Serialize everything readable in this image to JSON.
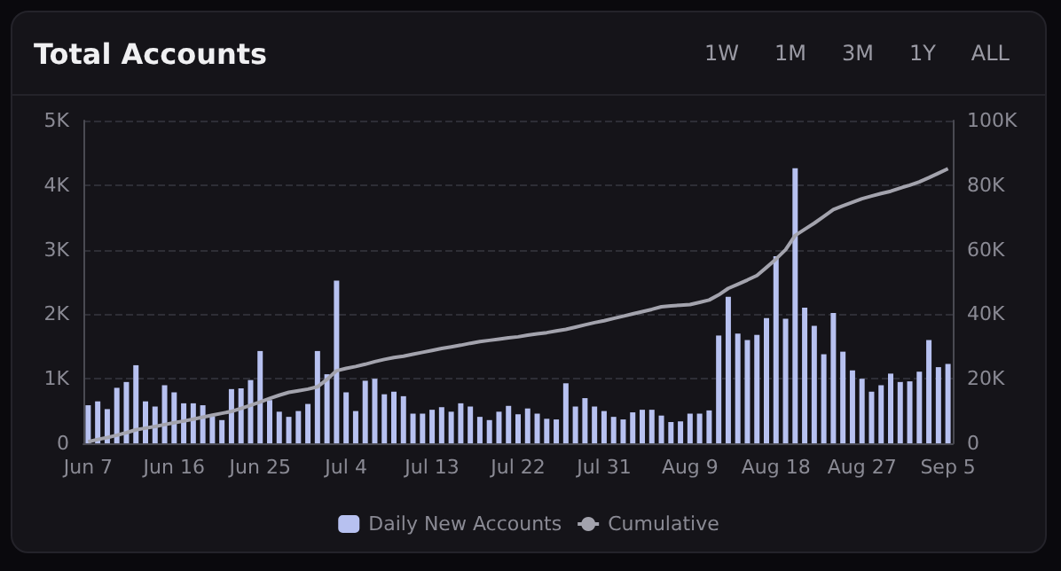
{
  "chart_data": {
    "type": "bar",
    "title": "Total Accounts",
    "annotations": [
      "1W",
      "1M",
      "3M",
      "1Y",
      "ALL"
    ],
    "categories": [
      "Jun 7",
      null,
      null,
      null,
      null,
      null,
      null,
      null,
      null,
      "Jun 16",
      null,
      null,
      null,
      null,
      null,
      null,
      null,
      null,
      "Jun 25",
      null,
      null,
      null,
      null,
      null,
      null,
      null,
      null,
      "Jul 4",
      null,
      null,
      null,
      null,
      null,
      null,
      null,
      null,
      "Jul 13",
      null,
      null,
      null,
      null,
      null,
      null,
      null,
      null,
      "Jul 22",
      null,
      null,
      null,
      null,
      null,
      null,
      null,
      null,
      "Jul 31",
      null,
      null,
      null,
      null,
      null,
      null,
      null,
      null,
      "Aug 9",
      null,
      null,
      null,
      null,
      null,
      null,
      null,
      null,
      "Aug 18",
      null,
      null,
      null,
      null,
      null,
      null,
      null,
      null,
      "Aug 27",
      null,
      null,
      null,
      null,
      null,
      null,
      null,
      null,
      "Sep 5"
    ],
    "series": [
      {
        "name": "Daily New Accounts",
        "color": "#b7c1f0",
        "values": [
          590,
          650,
          530,
          860,
          950,
          1210,
          650,
          570,
          900,
          790,
          620,
          620,
          590,
          420,
          360,
          840,
          850,
          980,
          1430,
          670,
          490,
          410,
          500,
          610,
          1430,
          1070,
          2520,
          790,
          500,
          970,
          1000,
          760,
          800,
          730,
          460,
          460,
          520,
          560,
          490,
          620,
          570,
          410,
          360,
          490,
          580,
          450,
          540,
          460,
          380,
          370,
          930,
          570,
          700,
          570,
          500,
          410,
          370,
          480,
          520,
          520,
          430,
          330,
          340,
          460,
          460,
          510,
          1670,
          2270,
          1700,
          1600,
          1680,
          1940,
          2900,
          1930,
          4260,
          2100,
          1820,
          1380,
          2020,
          1420,
          1130,
          1000,
          800,
          900,
          1080,
          950,
          960,
          1110,
          1600,
          1180,
          1230
        ]
      },
      {
        "name": "Cumulative",
        "type": "line",
        "axis": "y2",
        "color": "#a3a3ad",
        "values": [
          500,
          1200,
          1800,
          2500,
          3300,
          4200,
          4700,
          5200,
          5800,
          6400,
          6900,
          7500,
          8100,
          8700,
          9300,
          9900,
          10800,
          11800,
          12800,
          13900,
          14900,
          15800,
          16300,
          16800,
          17500,
          19800,
          22500,
          23200,
          23800,
          24500,
          25300,
          26000,
          26600,
          27000,
          27600,
          28200,
          28800,
          29400,
          29900,
          30400,
          31000,
          31500,
          31900,
          32300,
          32700,
          33000,
          33500,
          33900,
          34300,
          34800,
          35300,
          36000,
          36700,
          37400,
          38000,
          38700,
          39400,
          40100,
          40800,
          41500,
          42300,
          42600,
          42800,
          43000,
          43700,
          44400,
          46000,
          48000,
          49300,
          50600,
          52000,
          54500,
          57100,
          60000,
          64400,
          66300,
          68200,
          70300,
          72400,
          73600,
          74700,
          75800,
          76600,
          77400,
          78100,
          79100,
          80000,
          81000,
          82300,
          83700,
          85100
        ]
      }
    ],
    "ylim": [
      0,
      5000
    ],
    "yticks": [
      0,
      {
        "value": 1000,
        "label": "1K"
      },
      {
        "value": 2000,
        "label": "2K"
      },
      {
        "value": 3000,
        "label": "3K"
      },
      {
        "value": 4000,
        "label": "4K"
      },
      {
        "value": 5000,
        "label": "5K"
      }
    ],
    "y2lim": [
      0,
      100000
    ],
    "y2ticks": [
      0,
      {
        "value": 20000,
        "label": "20K"
      },
      {
        "value": 40000,
        "label": "40K"
      },
      {
        "value": 60000,
        "label": "60K"
      },
      {
        "value": 80000,
        "label": "80K"
      },
      {
        "value": 100000,
        "label": "100K"
      }
    ],
    "grid": "y",
    "legend": "bottom",
    "marker": "none",
    "line_style": "solid"
  }
}
